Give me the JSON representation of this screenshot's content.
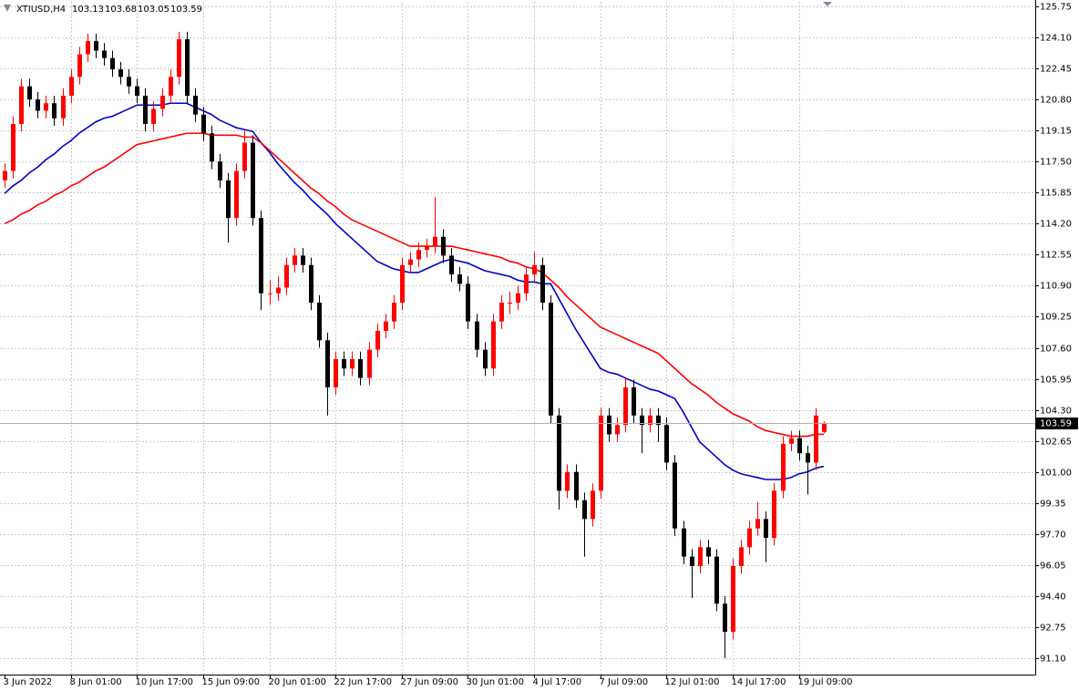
{
  "chart_data": {
    "type": "candlestick",
    "title": "XTIUSD,H4",
    "color_up": "#ff0000",
    "color_down": "#000000",
    "grid": true,
    "ylim": [
      90.23,
      125.99
    ],
    "yticks": [
      125.75,
      {
        "value": 124.1,
        "label": "124.10"
      },
      122.45,
      {
        "value": 120.8,
        "label": "120.80"
      },
      119.15,
      {
        "value": 117.5,
        "label": "117.50"
      },
      115.85,
      {
        "value": 114.2,
        "label": "114.20"
      },
      112.55,
      {
        "value": 110.9,
        "label": "110.90"
      },
      109.25,
      {
        "value": 107.6,
        "label": "107.60"
      },
      105.95,
      {
        "value": 104.3,
        "label": "104.30"
      },
      102.65,
      {
        "value": 101.0,
        "label": "101.00"
      },
      99.35,
      {
        "value": 97.7,
        "label": "97.70"
      },
      96.05,
      {
        "value": 94.4,
        "label": "94.40"
      },
      92.75,
      {
        "value": 91.1,
        "label": "91.10"
      }
    ],
    "categories": [
      "3 Jun 2022",
      null,
      null,
      null,
      null,
      null,
      null,
      null,
      "8 Jun 01:00",
      null,
      null,
      null,
      null,
      null,
      null,
      null,
      "10 Jun 17:00",
      null,
      null,
      null,
      null,
      null,
      null,
      null,
      "15 Jun 09:00",
      null,
      null,
      null,
      null,
      null,
      null,
      null,
      "20 Jun 01:00",
      null,
      null,
      null,
      null,
      null,
      null,
      null,
      "22 Jun 17:00",
      null,
      null,
      null,
      null,
      null,
      null,
      null,
      "27 Jun 09:00",
      null,
      null,
      null,
      null,
      null,
      null,
      null,
      "30 Jun 01:00",
      null,
      null,
      null,
      null,
      null,
      null,
      null,
      "4 Jul 17:00",
      null,
      null,
      null,
      null,
      null,
      null,
      null,
      "7 Jul 09:00",
      null,
      null,
      null,
      null,
      null,
      null,
      null,
      "12 Jul 01:00",
      null,
      null,
      null,
      null,
      null,
      null,
      null,
      "14 Jul 17:00",
      null,
      null,
      null,
      null,
      null,
      null,
      null,
      "19 Jul 09:00",
      null,
      null,
      null
    ],
    "open": [
      116.5,
      117.0,
      119.5,
      121.5,
      120.8,
      120.2,
      120.6,
      119.8,
      121.0,
      122.0,
      123.2,
      123.9,
      123.4,
      123.0,
      122.4,
      122.0,
      121.5,
      121.0,
      119.5,
      120.3,
      121.0,
      122.0,
      124.0,
      121.0,
      120.0,
      119.0,
      117.5,
      116.5,
      114.5,
      117.0,
      118.5,
      114.5,
      110.5,
      110.5,
      110.8,
      112.0,
      112.5,
      112.0,
      110.0,
      108.0,
      105.5,
      107.0,
      106.5,
      107.0,
      106.0,
      107.5,
      108.5,
      109.0,
      110.0,
      112.0,
      112.3,
      112.8,
      113.0,
      113.5,
      112.5,
      111.5,
      111.0,
      109.0,
      107.5,
      106.5,
      109.0,
      110.0,
      110.0,
      110.5,
      111.5,
      112.0,
      110.0,
      104.0,
      100.0,
      101.0,
      99.5,
      98.5,
      100.0,
      104.0,
      103.0,
      103.5,
      105.5,
      104.0,
      103.5,
      104.0,
      103.5,
      101.5,
      98.0,
      96.5,
      96.0,
      97.0,
      96.5,
      94.0,
      92.5,
      96.0,
      97.0,
      98.0,
      98.5,
      97.5,
      100.0,
      102.5,
      102.8,
      102.0,
      101.5,
      103.13
    ],
    "high": [
      117.4,
      119.9,
      121.9,
      121.9,
      121.2,
      121.0,
      121.0,
      121.4,
      122.4,
      123.6,
      124.3,
      124.3,
      123.8,
      123.4,
      122.8,
      122.4,
      121.9,
      121.4,
      120.7,
      121.4,
      122.4,
      124.4,
      124.4,
      121.4,
      120.4,
      119.4,
      117.9,
      116.9,
      117.4,
      119.2,
      118.9,
      114.9,
      111.2,
      111.4,
      112.4,
      112.9,
      112.9,
      112.4,
      110.4,
      108.4,
      107.4,
      107.4,
      107.4,
      107.4,
      107.9,
      108.9,
      109.4,
      110.4,
      112.4,
      112.7,
      113.2,
      113.4,
      115.6,
      113.9,
      112.9,
      111.9,
      111.4,
      109.4,
      107.9,
      109.4,
      110.4,
      110.6,
      110.9,
      111.9,
      112.7,
      112.4,
      110.4,
      104.4,
      101.4,
      101.4,
      99.9,
      100.4,
      104.4,
      104.4,
      103.9,
      106.0,
      105.9,
      104.4,
      104.4,
      104.4,
      103.9,
      101.9,
      98.4,
      96.9,
      97.4,
      97.4,
      96.9,
      94.4,
      96.4,
      97.4,
      98.4,
      99.4,
      98.9,
      100.4,
      102.9,
      103.2,
      103.2,
      102.4,
      104.4,
      103.68
    ],
    "low": [
      116.1,
      116.6,
      119.1,
      120.4,
      119.8,
      119.8,
      119.4,
      119.4,
      120.6,
      121.6,
      122.8,
      123.0,
      122.6,
      122.0,
      121.6,
      121.1,
      120.6,
      119.1,
      119.1,
      119.9,
      120.6,
      121.6,
      120.6,
      119.6,
      118.6,
      117.1,
      116.1,
      113.2,
      114.1,
      116.6,
      114.1,
      109.6,
      109.9,
      110.1,
      110.4,
      111.6,
      111.6,
      109.6,
      107.6,
      104.0,
      105.1,
      106.1,
      106.1,
      105.6,
      105.6,
      107.1,
      108.1,
      108.6,
      109.6,
      111.6,
      111.9,
      112.4,
      112.6,
      112.1,
      111.1,
      110.6,
      108.6,
      107.1,
      106.1,
      106.1,
      108.6,
      109.4,
      109.6,
      110.1,
      111.1,
      109.6,
      103.6,
      99.0,
      99.6,
      99.1,
      96.5,
      98.1,
      99.6,
      102.6,
      102.6,
      103.1,
      103.6,
      102.0,
      103.1,
      102.6,
      101.1,
      97.6,
      96.1,
      94.3,
      95.6,
      96.1,
      93.6,
      91.1,
      92.1,
      95.6,
      96.6,
      97.6,
      96.2,
      97.1,
      99.6,
      102.1,
      101.6,
      99.8,
      101.1,
      103.05
    ],
    "close": [
      117.0,
      119.5,
      121.5,
      120.8,
      120.2,
      120.6,
      119.8,
      121.0,
      122.0,
      123.2,
      123.9,
      123.4,
      123.0,
      122.4,
      122.0,
      121.5,
      121.0,
      119.5,
      120.3,
      121.0,
      122.0,
      124.0,
      121.0,
      120.0,
      119.0,
      117.5,
      116.5,
      114.5,
      117.0,
      118.5,
      114.5,
      110.5,
      110.5,
      110.8,
      112.0,
      112.5,
      112.0,
      110.0,
      108.0,
      105.5,
      107.0,
      106.5,
      107.0,
      106.0,
      107.5,
      108.5,
      109.0,
      110.0,
      112.0,
      112.3,
      112.8,
      113.0,
      113.5,
      112.5,
      111.5,
      111.0,
      109.0,
      107.5,
      106.5,
      109.0,
      110.0,
      110.0,
      110.5,
      111.5,
      112.0,
      110.0,
      104.0,
      100.0,
      101.0,
      99.5,
      98.5,
      100.0,
      104.0,
      103.0,
      103.5,
      105.5,
      104.0,
      103.5,
      104.0,
      103.5,
      101.5,
      98.0,
      96.5,
      96.0,
      97.0,
      96.5,
      94.0,
      92.5,
      96.0,
      97.0,
      98.0,
      98.5,
      97.5,
      100.0,
      102.5,
      102.8,
      102.0,
      101.5,
      104.0,
      103.59
    ],
    "series": [
      {
        "color": "#0000cc",
        "values": [
          115.8,
          116.2,
          116.5,
          116.9,
          117.2,
          117.6,
          117.9,
          118.3,
          118.6,
          119.0,
          119.3,
          119.6,
          119.8,
          119.9,
          120.1,
          120.3,
          120.5,
          120.5,
          120.5,
          120.5,
          120.6,
          120.6,
          120.6,
          120.4,
          120.2,
          120.0,
          119.7,
          119.5,
          119.3,
          119.2,
          119.1,
          118.5,
          118.0,
          117.4,
          116.9,
          116.4,
          116.0,
          115.5,
          115.1,
          114.7,
          114.2,
          113.8,
          113.4,
          113.0,
          112.6,
          112.2,
          112.0,
          111.8,
          111.7,
          111.6,
          111.6,
          111.8,
          112.0,
          112.2,
          112.3,
          112.2,
          112.1,
          111.9,
          111.7,
          111.6,
          111.5,
          111.4,
          111.2,
          111.1,
          111.1,
          111.0,
          111.0,
          110.2,
          109.4,
          108.6,
          107.9,
          107.2,
          106.5,
          106.3,
          106.2,
          106.0,
          105.8,
          105.6,
          105.4,
          105.3,
          105.1,
          104.9,
          104.2,
          103.4,
          102.6,
          102.2,
          101.8,
          101.4,
          101.1,
          100.9,
          100.8,
          100.7,
          100.6,
          100.6,
          100.6,
          100.7,
          100.9,
          101.0,
          101.2,
          101.3
        ]
      },
      {
        "color": "#ff0000",
        "values": [
          114.2,
          114.4,
          114.7,
          114.9,
          115.2,
          115.4,
          115.7,
          115.9,
          116.2,
          116.4,
          116.7,
          117.0,
          117.2,
          117.5,
          117.8,
          118.1,
          118.4,
          118.5,
          118.6,
          118.7,
          118.8,
          118.9,
          119.0,
          119.0,
          119.0,
          118.9,
          118.9,
          118.9,
          118.9,
          118.8,
          118.8,
          118.5,
          118.1,
          117.7,
          117.3,
          116.9,
          116.5,
          116.1,
          115.8,
          115.4,
          115.1,
          114.7,
          114.4,
          114.2,
          114.0,
          113.8,
          113.6,
          113.4,
          113.2,
          113.0,
          113.0,
          113.0,
          113.0,
          113.0,
          113.0,
          112.9,
          112.8,
          112.7,
          112.6,
          112.5,
          112.4,
          112.2,
          112.1,
          111.9,
          111.8,
          111.6,
          111.2,
          110.8,
          110.3,
          109.9,
          109.5,
          109.1,
          108.7,
          108.5,
          108.3,
          108.1,
          107.9,
          107.7,
          107.5,
          107.3,
          106.9,
          106.5,
          106.1,
          105.7,
          105.4,
          105.1,
          104.7,
          104.4,
          104.1,
          103.9,
          103.7,
          103.4,
          103.2,
          103.1,
          103.0,
          102.9,
          102.9,
          102.9,
          103.0,
          103.0
        ]
      }
    ]
  }
}
